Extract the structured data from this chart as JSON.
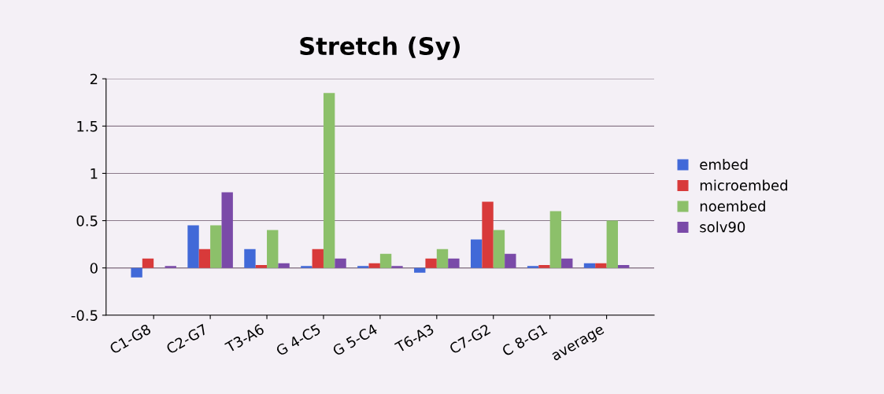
{
  "chart_data": {
    "type": "bar",
    "title": "Stretch (Sy)",
    "categories": [
      "C1-G8",
      "C2-G7",
      "T3-A6",
      "G 4-C5",
      "G 5-C4",
      "T6-A3",
      "C7-G2",
      "C 8-G1",
      "average"
    ],
    "series": [
      {
        "name": "embed",
        "color": "#4169d8",
        "values": [
          -0.1,
          0.45,
          0.2,
          0.02,
          0.02,
          -0.05,
          0.3,
          0.02,
          0.05
        ]
      },
      {
        "name": "microembed",
        "color": "#d83a3a",
        "values": [
          0.1,
          0.2,
          0.03,
          0.2,
          0.05,
          0.1,
          0.7,
          0.03,
          0.05
        ]
      },
      {
        "name": "noembed",
        "color": "#8cc06a",
        "values": [
          0.0,
          0.45,
          0.4,
          1.85,
          0.15,
          0.2,
          0.4,
          0.6,
          0.5
        ]
      },
      {
        "name": "solv90",
        "color": "#7a4aa8",
        "values": [
          0.02,
          0.8,
          0.05,
          0.1,
          0.02,
          0.1,
          0.15,
          0.1,
          0.03
        ]
      }
    ],
    "ylim": [
      -0.5,
      2
    ],
    "yticks": [
      -0.5,
      0,
      0.5,
      1,
      1.5,
      2
    ],
    "grid": "y",
    "legend": "right"
  }
}
